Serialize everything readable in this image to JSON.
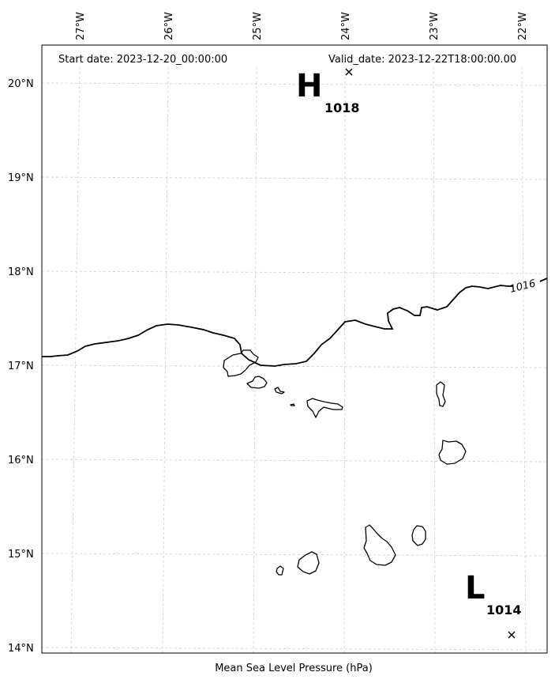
{
  "header": {
    "start_date": "Start date: 2023-12-20_00:00:00",
    "valid_date": "Valid_date: 2023-12-22T18:00:00.00"
  },
  "footer": {
    "caption": "Mean Sea Level Pressure (hPa)"
  },
  "axes": {
    "lon_labels": [
      "27°W",
      "26°W",
      "25°W",
      "24°W",
      "23°W",
      "22°W"
    ],
    "lat_labels": [
      "20°N",
      "19°N",
      "18°N",
      "17°N",
      "16°N",
      "15°N",
      "14°N"
    ],
    "lon_values": [
      -27,
      -26,
      -25,
      -24,
      -23,
      -22
    ],
    "lat_values": [
      20,
      19,
      18,
      17,
      16,
      15,
      14
    ],
    "grid": true
  },
  "pressure_centers": [
    {
      "letter": "H",
      "value": "1018",
      "lon": -23.96,
      "lat": 20.12
    },
    {
      "letter": "L",
      "value": "1014",
      "lon": -22.12,
      "lat": 14.14
    }
  ],
  "isobars": [
    {
      "label": "1016"
    }
  ],
  "colors": {
    "coast": "#000000",
    "grid": "#cccccc",
    "contour": "#000000"
  }
}
